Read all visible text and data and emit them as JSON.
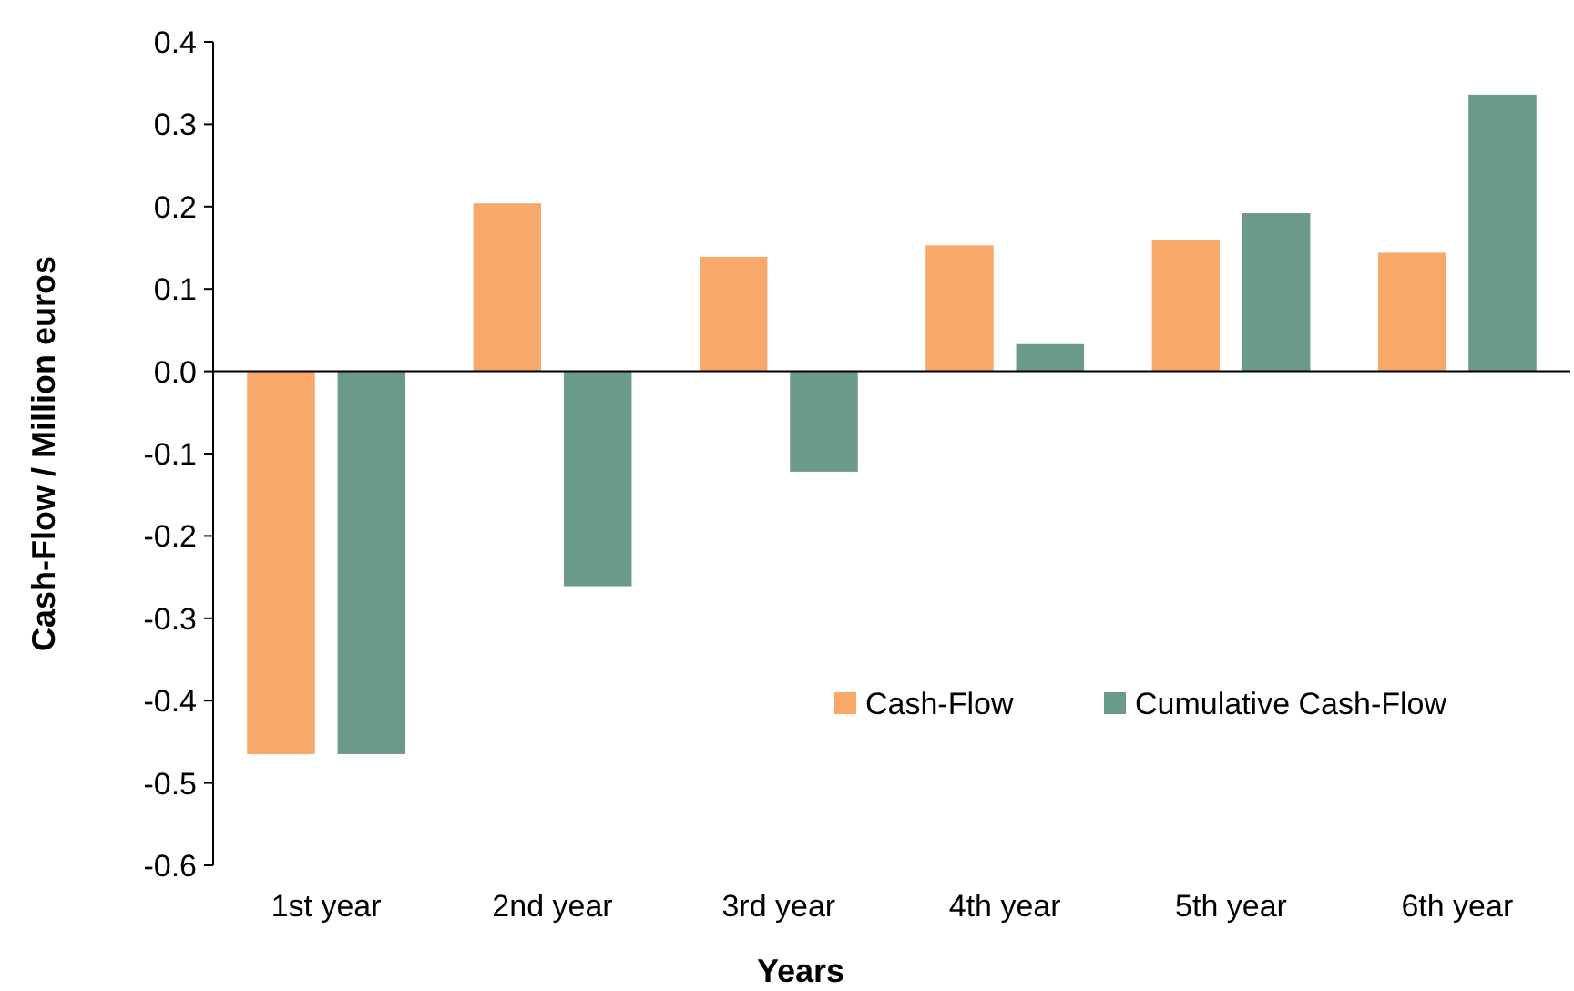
{
  "chart_data": {
    "type": "bar",
    "xlabel": "Years",
    "ylabel": "Cash-Flow / Million euros",
    "categories": [
      "1st year",
      "2nd year",
      "3rd year",
      "4th year",
      "5th year",
      "6th year"
    ],
    "series": [
      {
        "name": "Cash-Flow",
        "color": "#f7a96b",
        "values": [
          -0.465,
          0.204,
          0.139,
          0.153,
          0.159,
          0.144
        ]
      },
      {
        "name": "Cumulative Cash-Flow",
        "color": "#6b9a8a",
        "values": [
          -0.465,
          -0.261,
          -0.122,
          0.033,
          0.192,
          0.336
        ]
      }
    ],
    "ylim": [
      -0.6,
      0.4
    ],
    "yticks": [
      {
        "value": -0.6,
        "label": "-0.6"
      },
      {
        "value": -0.5,
        "label": "-0.5"
      },
      {
        "value": -0.4,
        "label": "-0.4"
      },
      {
        "value": -0.3,
        "label": "-0.3"
      },
      {
        "value": -0.2,
        "label": "-0.2"
      },
      {
        "value": -0.1,
        "label": "-0.1"
      },
      {
        "value": 0,
        "label": "0.0"
      },
      {
        "value": 0.1,
        "label": "0.1"
      },
      {
        "value": 0.2,
        "label": "0.2"
      },
      {
        "value": 0.3,
        "label": "0.3"
      },
      {
        "value": 0.4,
        "label": "0.4"
      }
    ],
    "legend": "bottom right"
  }
}
